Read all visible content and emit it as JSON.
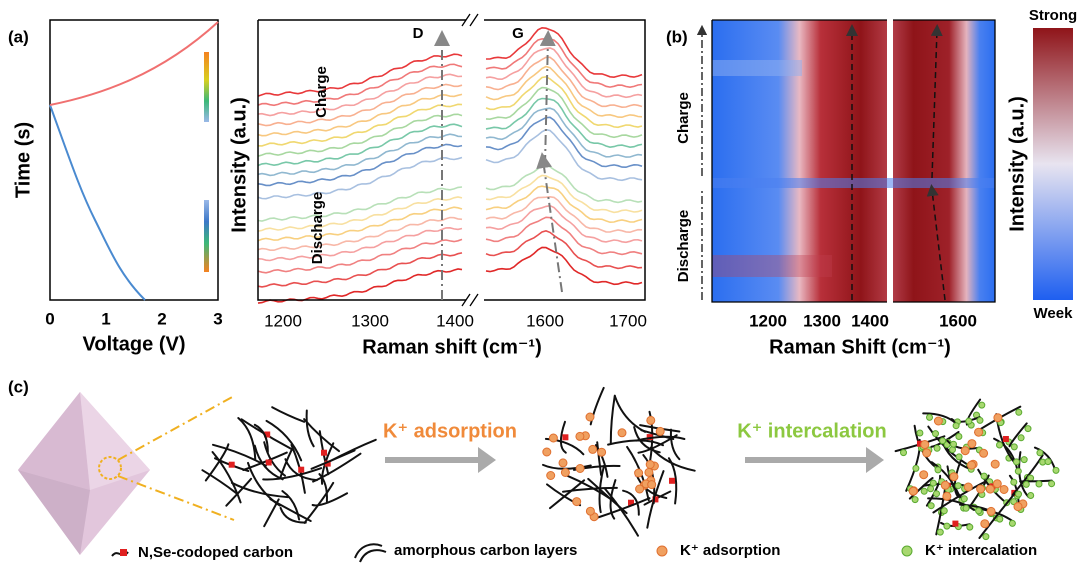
{
  "panel_a": {
    "label": "(a)",
    "y_label": "Time (s)",
    "x_label": "Voltage (V)",
    "x_ticks": [
      "0",
      "1",
      "2",
      "3"
    ]
  },
  "panel_raman": {
    "y_label": "Intensity (a.u.)",
    "x_label": "Raman shift (cm⁻¹)",
    "x_ticks": [
      "1200",
      "1300",
      "1400",
      "1600",
      "1700"
    ],
    "peaks": [
      "D",
      "G"
    ],
    "annotations": [
      "Charge",
      "Discharge"
    ]
  },
  "panel_b": {
    "label": "(b)",
    "x_label": "Raman Shift (cm⁻¹)",
    "x_ticks": [
      "1200",
      "1300",
      "1400",
      "1600"
    ],
    "annotations": [
      "Charge",
      "Discharge"
    ],
    "colorbar": {
      "title": "Intensity (a.u.)",
      "top": "Strong",
      "bottom": "Week"
    }
  },
  "panel_c": {
    "label": "(c)",
    "steps": [
      "K⁺ adsorption",
      "K⁺ intercalation"
    ],
    "legend": [
      "N,Se-codoped carbon",
      "amorphous carbon layers",
      "K⁺ adsorption",
      "K⁺ intercalation"
    ]
  }
}
